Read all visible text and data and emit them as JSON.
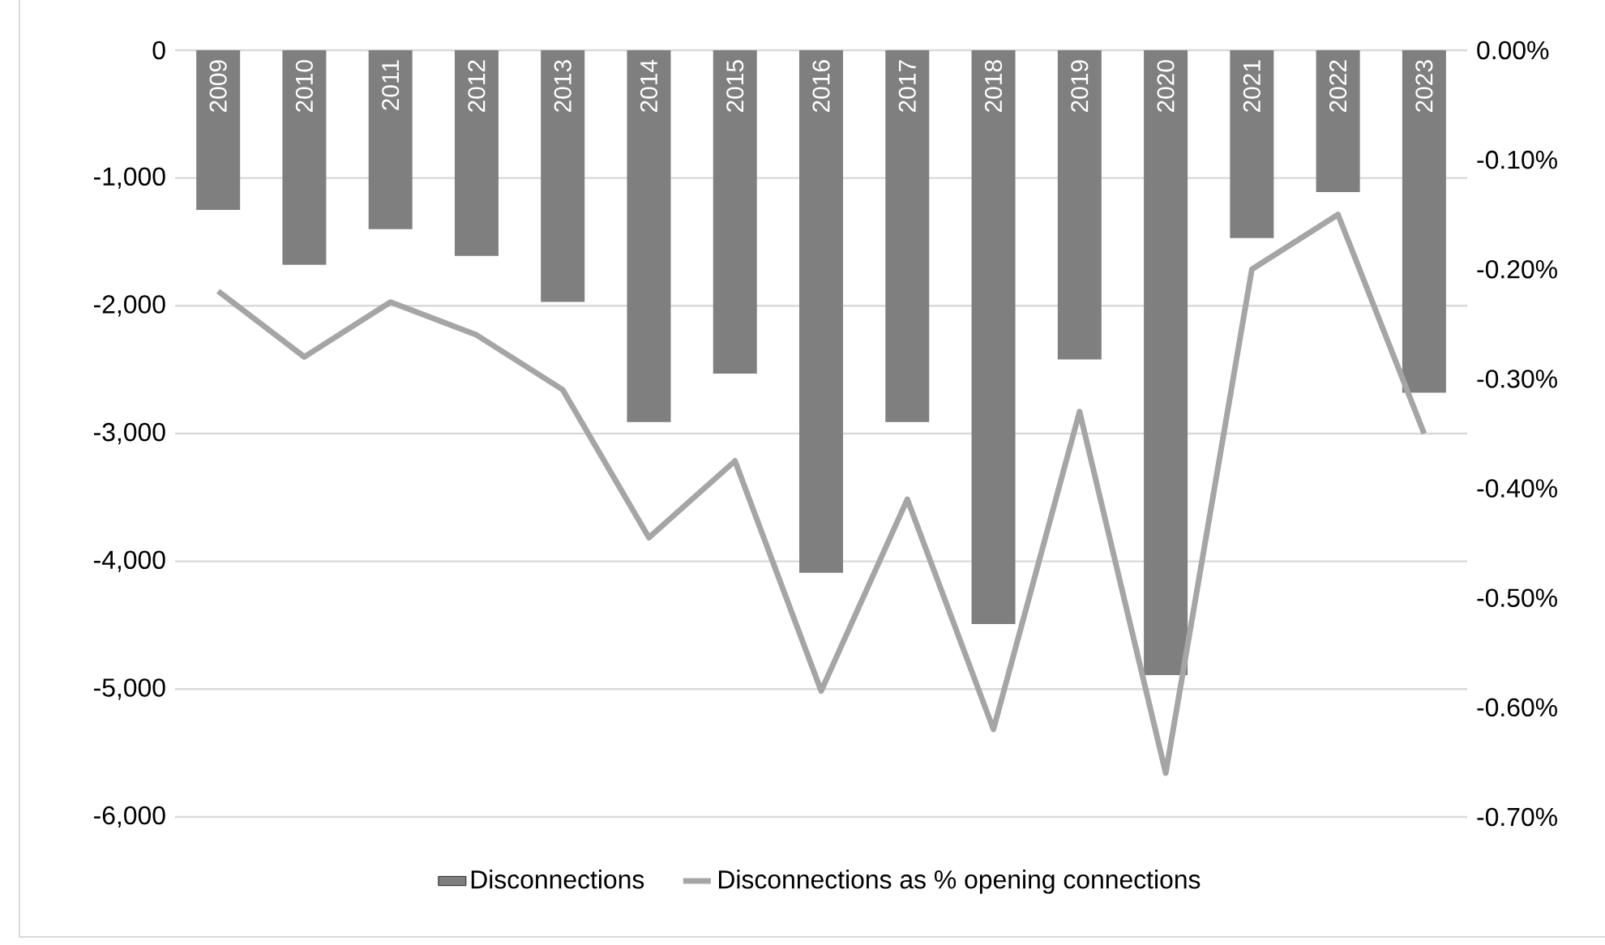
{
  "chart_data": {
    "type": "bar",
    "categories": [
      "2009",
      "2010",
      "2011",
      "2012",
      "2013",
      "2014",
      "2015",
      "2016",
      "2017",
      "2018",
      "2019",
      "2020",
      "2021",
      "2022",
      "2023"
    ],
    "series": [
      {
        "name": "Disconnections",
        "color": "#7f7f7f",
        "values": [
          -1250,
          -1680,
          -1400,
          -1610,
          -1970,
          -2910,
          -2530,
          -4090,
          -2910,
          -4490,
          -2420,
          -4890,
          -1470,
          -1110,
          -2680
        ]
      },
      {
        "name": "Disconnections as % opening connections",
        "type": "line",
        "axis": "y2",
        "color": "#a5a5a5",
        "values": [
          -0.22,
          -0.28,
          -0.23,
          -0.26,
          -0.31,
          -0.445,
          -0.375,
          -0.585,
          -0.41,
          -0.62,
          -0.33,
          -0.66,
          -0.2,
          -0.15,
          -0.35
        ]
      }
    ],
    "ylim": [
      -6000,
      0
    ],
    "yticks": [
      {
        "value": -6000,
        "label": "-6,000"
      },
      {
        "value": -5000,
        "label": "-5,000"
      },
      {
        "value": -4000,
        "label": "-4,000"
      },
      {
        "value": -3000,
        "label": "-3,000"
      },
      {
        "value": -2000,
        "label": "-2,000"
      },
      {
        "value": -1000,
        "label": "-1,000"
      },
      0
    ],
    "y2lim": [
      -0.7,
      0
    ],
    "y2ticks": [
      {
        "value": -0.7,
        "label": "-0.70%"
      },
      {
        "value": -0.6,
        "label": "-0.60%"
      },
      {
        "value": -0.5,
        "label": "-0.50%"
      },
      {
        "value": -0.4,
        "label": "-0.40%"
      },
      {
        "value": -0.3,
        "label": "-0.30%"
      },
      {
        "value": -0.2,
        "label": "-0.20%"
      },
      {
        "value": -0.1,
        "label": "-0.10%"
      },
      {
        "value": 0,
        "label": "0.00%"
      }
    ],
    "grid": "y",
    "legend": "bottom"
  }
}
